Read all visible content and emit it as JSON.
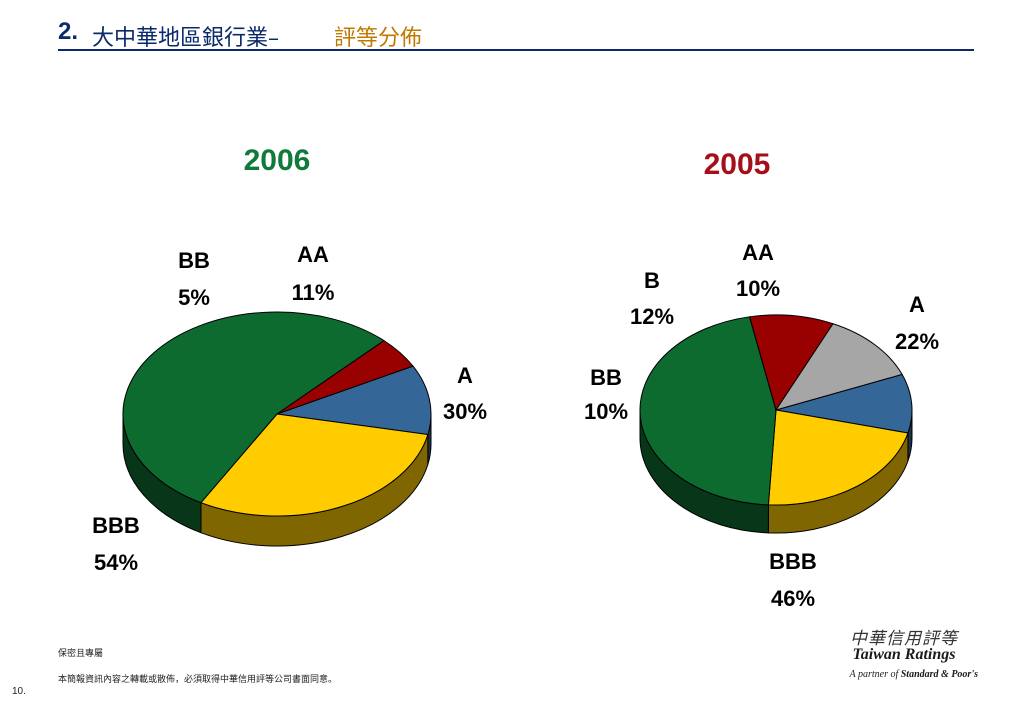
{
  "header": {
    "number": "2.",
    "title": "大中華地區銀行業–",
    "subtitle": "評等分佈"
  },
  "chart_data": [
    {
      "type": "pie",
      "title": "2006",
      "title_color": "#107a3a",
      "slices": [
        {
          "label": "AA",
          "value": 11,
          "display": "11%",
          "color": "#346698"
        },
        {
          "label": "A",
          "value": 30,
          "display": "30%",
          "color": "#ffcc00"
        },
        {
          "label": "BBB",
          "value": 54,
          "display": "54%",
          "color": "#0d6b30"
        },
        {
          "label": "BB",
          "value": 5,
          "display": "5%",
          "color": "#990000"
        }
      ]
    },
    {
      "type": "pie",
      "title": "2005",
      "title_color": "#a50f1a",
      "slices": [
        {
          "label": "AA",
          "value": 10,
          "display": "10%",
          "color": "#346698"
        },
        {
          "label": "A",
          "value": 22,
          "display": "22%",
          "color": "#ffcc00"
        },
        {
          "label": "BBB",
          "value": 46,
          "display": "46%",
          "color": "#0d6b30"
        },
        {
          "label": "BB",
          "value": 10,
          "display": "10%",
          "color": "#990000"
        },
        {
          "label": "B",
          "value": 12,
          "display": "12%",
          "color": "#a6a6a6"
        }
      ]
    }
  ],
  "footer": {
    "confidential": "保密且專屬",
    "notice": "本簡報資訊內容之轉載或散佈，必須取得中華信用評等公司書面同意。",
    "page": "10."
  },
  "logo": {
    "chinese": "中華信用評等",
    "english": "Taiwan Ratings",
    "partner_prefix": "A partner of",
    "partner_name": "Standard & Poor's"
  }
}
